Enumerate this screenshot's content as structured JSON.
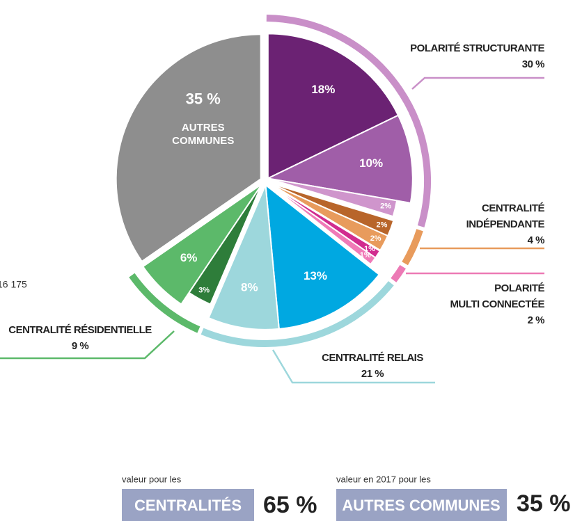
{
  "chart_data": {
    "type": "pie",
    "groups": [
      {
        "name": [
          "POLARITÉ STRUCTURANTE"
        ],
        "value": 30,
        "value_label": "30 %",
        "color": "#c98fc8",
        "slices": [
          {
            "value": 18,
            "label": "18%",
            "color": "#6b2273"
          },
          {
            "value": 10,
            "label": "10%",
            "color": "#a05ea8"
          },
          {
            "value": 2,
            "label": "2%",
            "color": "#cf95cc"
          }
        ]
      },
      {
        "name": [
          "CENTRALITÉ",
          "INDÉPENDANTE"
        ],
        "value": 4,
        "value_label": "4 %",
        "color": "#e89b5c",
        "slices": [
          {
            "value": 2,
            "label": "2%",
            "color": "#b8652a"
          },
          {
            "value": 2,
            "label": "2%",
            "color": "#e89b5c"
          }
        ]
      },
      {
        "name": [
          "POLARITÉ",
          "MULTI CONNECTÉE"
        ],
        "value": 2,
        "value_label": "2 %",
        "color": "#ec7ab5",
        "slices": [
          {
            "value": 1,
            "label": "1%",
            "color": "#d12c8f"
          },
          {
            "value": 1,
            "label": "1%",
            "color": "#f07ab7"
          }
        ]
      },
      {
        "name": [
          "CENTRALITÉ RELAIS"
        ],
        "value": 21,
        "value_label": "21 %",
        "color": "#9dd7dc",
        "slices": [
          {
            "value": 13,
            "label": "13%",
            "color": "#00a8e1"
          },
          {
            "value": 8,
            "label": "8%",
            "color": "#9dd7dc"
          }
        ]
      },
      {
        "name": [
          "CENTRALITÉ RÉSIDENTIELLE"
        ],
        "value": 9,
        "value_label": "9 %",
        "color": "#5cb96a",
        "slices": [
          {
            "value": 3,
            "label": "3%",
            "color": "#2e7d3a"
          },
          {
            "value": 6,
            "label": "6%",
            "color": "#5cb96a"
          }
        ]
      },
      {
        "name": [
          "AUTRES",
          "COMMUNES"
        ],
        "value": 35,
        "value_label": "35 %",
        "color": "#8e8e8e",
        "slices": [
          {
            "value": 35,
            "color": "#8e8e8e"
          }
        ]
      }
    ],
    "side_note": "16 175"
  },
  "summary": [
    {
      "caption": "valeur pour les",
      "name": "CENTRALITÉS",
      "value": "65 %"
    },
    {
      "caption": "valeur en 2017 pour les",
      "name": "AUTRES COMMUNES",
      "value": "35 %"
    }
  ]
}
